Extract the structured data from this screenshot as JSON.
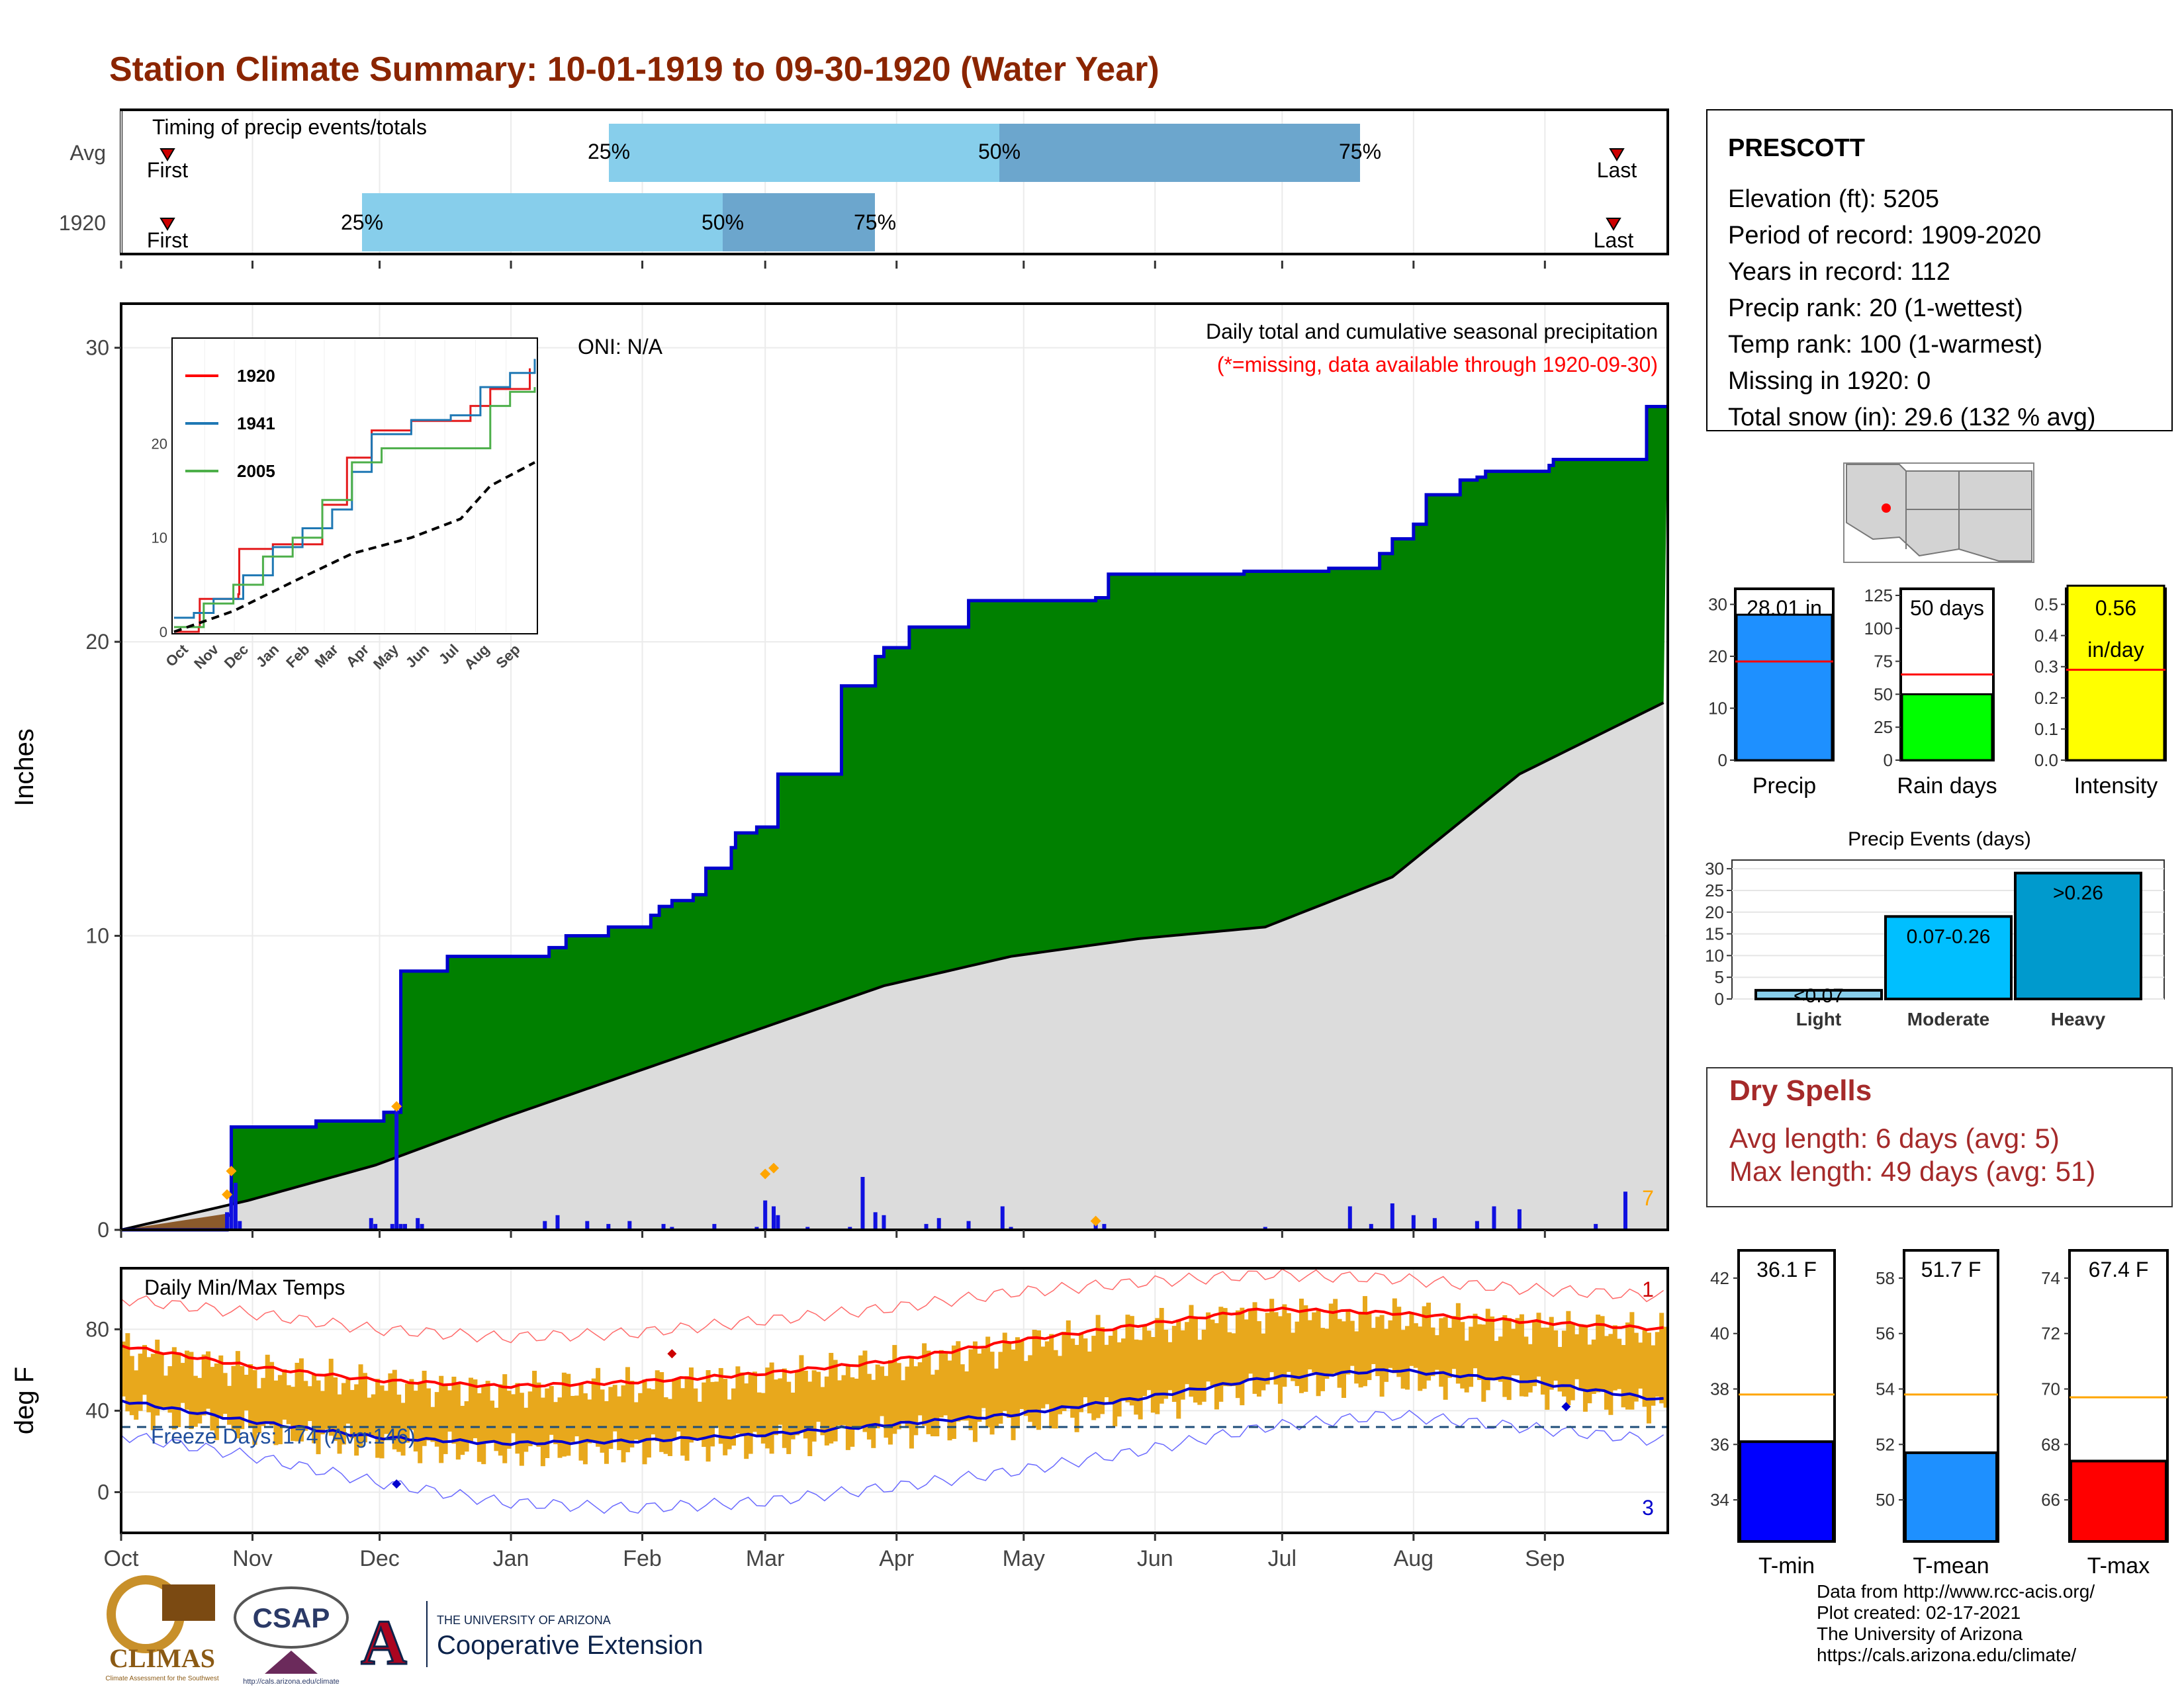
{
  "title": "Station Climate Summary: 10-01-1919 to 09-30-1920 (Water Year)",
  "timing": {
    "label": "Timing of precip events/totals",
    "rows": [
      {
        "label": "Avg",
        "first": "First",
        "last": "Last",
        "p25": "25%",
        "p50": "50%",
        "p75": "75%"
      },
      {
        "label": "1920",
        "first": "First",
        "last": "Last",
        "p25": "25%",
        "p50": "50%",
        "p75": "75%"
      }
    ]
  },
  "station": {
    "name": "PRESCOTT",
    "lines": [
      "Elevation (ft): 5205",
      "Period of record: 1909-2020",
      "Years in record: 112",
      "Precip rank: 20 (1-wettest)",
      "Temp rank: 100 (1-warmest)",
      "Missing in 1920: 0",
      "Total snow (in): 29.6 (132 % avg)"
    ]
  },
  "precip_panel": {
    "ylabel": "Inches",
    "title": "Daily total and cumulative seasonal precipitation",
    "subtitle": "(*=missing, data available through 1920-09-30)",
    "oni": "ONI: N/A",
    "corner_count": "7",
    "months": [
      "Oct",
      "Nov",
      "Dec",
      "Jan",
      "Feb",
      "Mar",
      "Apr",
      "May",
      "Jun",
      "Jul",
      "Aug",
      "Sep"
    ],
    "yticks": [
      "0",
      "10",
      "20",
      "30"
    ]
  },
  "inset": {
    "legend": [
      "1920",
      "1941",
      "2005"
    ],
    "xticks": [
      "Oct",
      "Nov",
      "Dec",
      "Jan",
      "Feb",
      "Mar",
      "Apr",
      "May",
      "Jun",
      "Jul",
      "Aug",
      "Sep"
    ],
    "yticks": [
      "0",
      "10",
      "20"
    ]
  },
  "temp_panel": {
    "ylabel": "deg F",
    "title": "Daily Min/Max Temps",
    "freeze": "Freeze Days: 174 (Avg:146)",
    "count_top": "1",
    "count_bottom": "3",
    "yticks": [
      "0",
      "40",
      "80"
    ]
  },
  "mini_bars": [
    {
      "label": "Precip",
      "value_text": "28.01 in",
      "yticks": [
        "0",
        "10",
        "20",
        "30"
      ]
    },
    {
      "label": "Rain days",
      "value_text": "50 days",
      "yticks": [
        "0",
        "25",
        "50",
        "75",
        "100",
        "125"
      ]
    },
    {
      "label": "Intensity",
      "value_text": "0.56",
      "value_text2": "in/day",
      "yticks": [
        "0.0",
        "0.1",
        "0.2",
        "0.3",
        "0.4",
        "0.5"
      ]
    }
  ],
  "events": {
    "title": "Precip Events (days)",
    "categories": [
      "Light",
      "Moderate",
      "Heavy"
    ],
    "bar_labels": [
      "<0.07",
      "0.07-0.26",
      ">0.26"
    ],
    "yticks": [
      "0",
      "5",
      "10",
      "15",
      "20",
      "25",
      "30"
    ]
  },
  "dry_spells": {
    "title": "Dry Spells",
    "avg": "Avg length: 6 days (avg: 5)",
    "max": "Max length: 49 days (avg: 51)"
  },
  "temp_bars": [
    {
      "label": "T-min",
      "value_text": "36.1 F",
      "yticks": [
        "34",
        "36",
        "38",
        "40",
        "42"
      ]
    },
    {
      "label": "T-mean",
      "value_text": "51.7 F",
      "yticks": [
        "50",
        "52",
        "54",
        "56",
        "58"
      ]
    },
    {
      "label": "T-max",
      "value_text": "67.4 F",
      "yticks": [
        "66",
        "68",
        "70",
        "72",
        "74"
      ]
    }
  ],
  "credits": [
    "Data from http://www.rcc-acis.org/",
    "Plot created: 02-17-2021",
    "The University of Arizona",
    "https://cals.arizona.edu/climate/"
  ],
  "logos": {
    "climas": "CLIMAS",
    "climas_small": "Climate Assessment for the Southwest",
    "csap": "CSAP",
    "csap_url": "http://cals.arizona.edu/climate",
    "ua_small": "THE UNIVERSITY OF ARIZONA",
    "ua_big": "Cooperative Extension"
  },
  "colors": {
    "title": "#8B2500",
    "green": "#008000",
    "blue_line": "#0000CD",
    "gray_fill": "#DCDCDC",
    "light_blue": "#87CEEB",
    "mid_blue": "#6CA6CD",
    "orange": "#FFA500",
    "gold": "#E8A81C",
    "red": "#FF0000",
    "yellow": "#FFFF00",
    "lime": "#00FF00",
    "dodger": "#1E90FF",
    "dry_red": "#A52A2A"
  },
  "chart_data": [
    {
      "type": "area",
      "name": "cumulative precipitation",
      "x_unit": "day of water year",
      "series": [
        {
          "name": "1920 cumulative",
          "x": [
            0,
            25,
            26,
            46,
            62,
            66,
            70,
            77,
            82,
            87,
            100,
            101,
            105,
            115,
            125,
            127,
            130,
            135,
            138,
            144,
            145,
            150,
            155,
            170,
            175,
            178,
            180,
            186,
            190,
            200,
            215,
            220,
            229,
            230,
            233,
            240,
            265,
            285,
            295,
            297,
            300,
            305,
            308,
            312,
            316,
            320,
            322,
            337,
            338,
            348,
            360,
            362,
            365
          ],
          "y": [
            0,
            0.5,
            3.5,
            3.7,
            4.0,
            8.8,
            8.8,
            9.3,
            9.3,
            9.3,
            9.3,
            9.6,
            10.0,
            10.3,
            10.7,
            11.0,
            11.2,
            11.4,
            12.3,
            13.0,
            13.5,
            13.7,
            15.5,
            18.5,
            18.5,
            19.5,
            19.8,
            20.5,
            20.5,
            21.4,
            21.4,
            21.4,
            21.4,
            21.5,
            22.3,
            22.3,
            22.4,
            22.5,
            22.5,
            23.0,
            23.5,
            24.0,
            25.0,
            25.0,
            25.5,
            25.6,
            25.8,
            26.0,
            26.2,
            26.2,
            28.0,
            28.0,
            28.0
          ]
        },
        {
          "name": "Avg cumulative",
          "x": [
            0,
            30,
            60,
            90,
            120,
            150,
            180,
            210,
            240,
            270,
            300,
            330,
            365
          ],
          "y": [
            0,
            1.0,
            2.2,
            3.8,
            5.3,
            6.8,
            8.3,
            9.3,
            9.9,
            10.3,
            12.0,
            15.5,
            18.0
          ]
        }
      ],
      "ylim": [
        0,
        30
      ],
      "daily_bars_x": [
        25,
        26,
        27,
        28,
        59,
        60,
        64,
        65,
        66,
        67,
        70,
        71,
        100,
        103,
        110,
        115,
        120,
        128,
        130,
        140,
        150,
        152,
        154,
        155,
        162,
        172,
        175,
        178,
        180,
        190,
        193,
        200,
        208,
        210,
        230,
        232,
        270,
        290,
        295,
        300,
        305,
        310,
        320,
        324,
        330,
        348,
        355
      ],
      "daily_bars_y": [
        0.6,
        1.2,
        1.6,
        0.3,
        0.4,
        0.2,
        0.2,
        4.2,
        0.2,
        0.2,
        0.4,
        0.2,
        0.3,
        0.5,
        0.3,
        0.2,
        0.3,
        0.2,
        0.1,
        0.2,
        0.1,
        1.0,
        0.8,
        0.5,
        0.1,
        0.1,
        1.8,
        0.6,
        0.5,
        0.2,
        0.4,
        0.3,
        0.8,
        0.1,
        0.2,
        0.2,
        0.1,
        0.8,
        0.2,
        0.9,
        0.5,
        0.4,
        0.3,
        0.8,
        0.7,
        0.2,
        1.3
      ]
    },
    {
      "type": "line",
      "name": "inset cumulative comparison",
      "series": [
        {
          "name": "1920",
          "x": [
            0,
            25,
            26,
            65,
            66,
            100,
            150,
            175,
            200,
            240,
            300,
            320,
            360
          ],
          "y": [
            0,
            0.5,
            3.5,
            4.0,
            8.8,
            9.3,
            13.5,
            18.5,
            21.4,
            22.4,
            24.0,
            25.8,
            28.0
          ]
        },
        {
          "name": "1941",
          "x": [
            0,
            20,
            40,
            70,
            100,
            130,
            160,
            180,
            200,
            240,
            280,
            310,
            340,
            365
          ],
          "y": [
            1.5,
            2.0,
            3.5,
            6.0,
            9.0,
            11.0,
            13.0,
            17.0,
            21.0,
            22.5,
            23.0,
            26.0,
            27.5,
            29.0
          ]
        },
        {
          "name": "2005",
          "x": [
            0,
            30,
            60,
            90,
            120,
            150,
            180,
            210,
            250,
            290,
            320,
            340,
            365
          ],
          "y": [
            0.5,
            3.0,
            5.0,
            8.0,
            10.0,
            14.0,
            18.0,
            19.5,
            19.5,
            19.5,
            24.0,
            25.5,
            26.0
          ]
        },
        {
          "name": "Avg",
          "x": [
            0,
            60,
            120,
            180,
            240,
            290,
            320,
            365
          ],
          "y": [
            0,
            2.2,
            5.3,
            8.3,
            10.0,
            12.0,
            15.5,
            18.0
          ]
        }
      ],
      "ylim": [
        0,
        30
      ]
    },
    {
      "type": "line",
      "name": "daily temperatures",
      "series": [
        {
          "name": "Avg max",
          "x": [
            0,
            30,
            60,
            90,
            120,
            150,
            180,
            210,
            240,
            270,
            300,
            330,
            365
          ],
          "y": [
            72,
            62,
            55,
            52,
            54,
            58,
            64,
            74,
            82,
            90,
            88,
            84,
            80
          ]
        },
        {
          "name": "Avg min",
          "x": [
            0,
            30,
            60,
            90,
            120,
            150,
            180,
            210,
            240,
            270,
            300,
            330,
            365
          ],
          "y": [
            45,
            35,
            27,
            24,
            25,
            28,
            33,
            38,
            46,
            56,
            60,
            55,
            45
          ]
        },
        {
          "name": "Record max",
          "x": [
            0,
            30,
            60,
            90,
            120,
            150,
            180,
            210,
            240,
            270,
            300,
            330,
            365
          ],
          "y": [
            95,
            88,
            80,
            76,
            78,
            84,
            90,
            98,
            103,
            107,
            105,
            100,
            96
          ]
        },
        {
          "name": "Record min",
          "x": [
            0,
            30,
            60,
            90,
            120,
            150,
            180,
            210,
            240,
            270,
            300,
            330,
            365
          ],
          "y": [
            28,
            18,
            5,
            -5,
            -8,
            -5,
            2,
            10,
            20,
            32,
            38,
            32,
            25
          ]
        }
      ],
      "freeze_line": 32,
      "ylim": [
        -20,
        110
      ]
    },
    {
      "type": "bar",
      "name": "summary bars",
      "categories": [
        "Precip",
        "Rain days",
        "Intensity"
      ],
      "values": [
        28.01,
        50,
        0.56
      ],
      "averages": [
        19,
        65,
        0.29
      ],
      "ylims": [
        [
          0,
          33
        ],
        [
          0,
          130
        ],
        [
          0,
          0.55
        ]
      ]
    },
    {
      "type": "bar",
      "name": "Precip Events (days)",
      "categories": [
        "Light",
        "Moderate",
        "Heavy"
      ],
      "values": [
        2,
        19,
        29
      ],
      "ylim": [
        0,
        32
      ]
    },
    {
      "type": "bar",
      "name": "temperature summary",
      "categories": [
        "T-min",
        "T-mean",
        "T-max"
      ],
      "values": [
        36.1,
        51.7,
        67.4
      ],
      "averages": [
        37.8,
        53.8,
        69.7
      ],
      "ylims": [
        [
          32.5,
          43
        ],
        [
          48.5,
          59
        ],
        [
          64.5,
          75
        ]
      ]
    }
  ]
}
